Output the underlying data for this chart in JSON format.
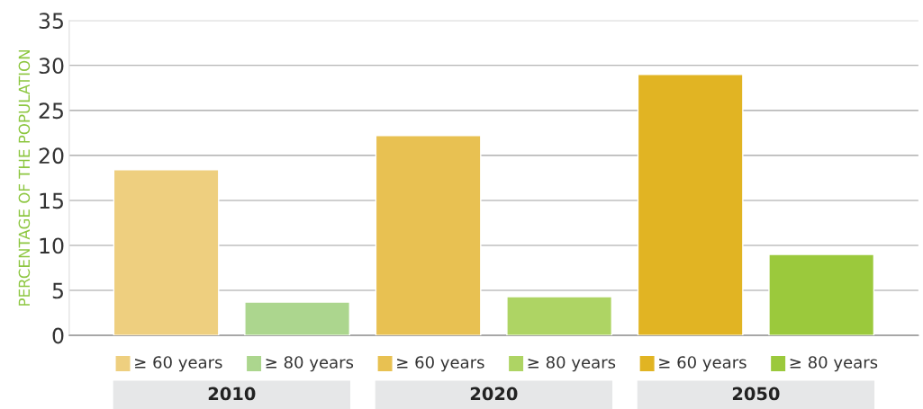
{
  "chart_data": {
    "type": "bar",
    "ylabel": "PERCENTAGE OF THE POPULATION",
    "categories": [
      "2010",
      "2020",
      "2050"
    ],
    "series": [
      {
        "name": "≥ 60 years",
        "colors": [
          "#eecf7f",
          "#e8c152",
          "#e1b423"
        ],
        "values": [
          18.4,
          22.2,
          29
        ]
      },
      {
        "name": "≥ 80 years",
        "colors": [
          "#acd68e",
          "#aed464",
          "#9bc93c"
        ],
        "values": [
          3.7,
          4.3,
          9
        ]
      }
    ],
    "ylim": [
      0,
      35
    ],
    "yticks": [
      0,
      5,
      10,
      15,
      20,
      25,
      30,
      35
    ],
    "grid": "y",
    "legend": "bottom"
  }
}
